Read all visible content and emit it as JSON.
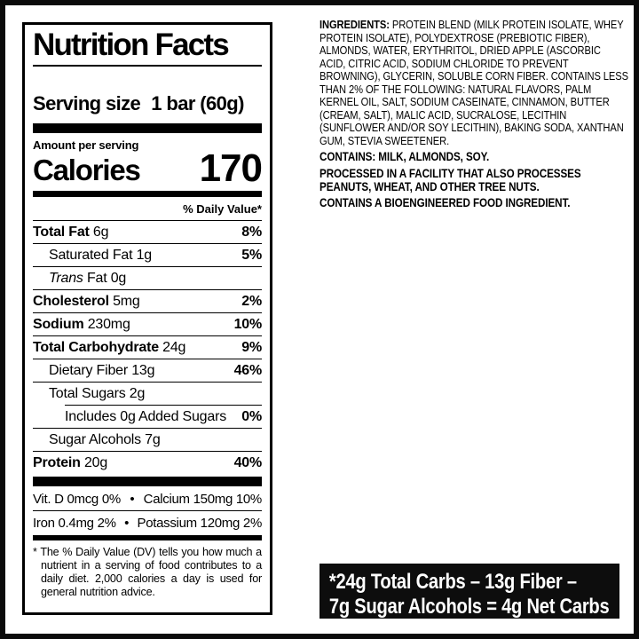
{
  "colors": {
    "ink": "#000000",
    "paper": "#ffffff",
    "callout_bg": "#0d0d0d",
    "callout_fg": "#ffffff"
  },
  "label": {
    "title": "Nutrition Facts",
    "serving": {
      "label": "Serving size",
      "value": "1 bar (60g)"
    },
    "amount_per_serving": "Amount per serving",
    "calories_label": "Calories",
    "calories_value": "170",
    "daily_value_header": "% Daily Value*",
    "rows": [
      {
        "name": "Total Fat",
        "amount": "6g",
        "dv": "8%",
        "style": "bold",
        "indent": 0,
        "divider": "full"
      },
      {
        "name": "Saturated Fat",
        "amount": "1g",
        "dv": "5%",
        "style": "regular",
        "indent": 1,
        "divider": "full"
      },
      {
        "name": "Trans Fat",
        "amount": "0g",
        "dv": "",
        "style": "italic-first",
        "indent": 1,
        "divider": "full"
      },
      {
        "name": "Cholesterol",
        "amount": "5mg",
        "dv": "2%",
        "style": "bold",
        "indent": 0,
        "divider": "full"
      },
      {
        "name": "Sodium",
        "amount": "230mg",
        "dv": "10%",
        "style": "bold",
        "indent": 0,
        "divider": "full"
      },
      {
        "name": "Total Carbohydrate",
        "amount": "24g",
        "dv": "9%",
        "style": "bold",
        "indent": 0,
        "divider": "full"
      },
      {
        "name": "Dietary Fiber",
        "amount": "13g",
        "dv": "46%",
        "style": "regular",
        "indent": 1,
        "divider": "full"
      },
      {
        "name": "Total Sugars",
        "amount": "2g",
        "dv": "",
        "style": "regular",
        "indent": 1,
        "divider": "indent"
      },
      {
        "name": "Includes 0g Added Sugars",
        "amount": "",
        "dv": "0%",
        "style": "regular",
        "indent": 2,
        "divider": "full"
      },
      {
        "name": "Sugar Alcohols",
        "amount": "7g",
        "dv": "",
        "style": "regular",
        "indent": 1,
        "divider": "full"
      },
      {
        "name": "Protein",
        "amount": "20g",
        "dv": "40%",
        "style": "bold",
        "indent": 0,
        "divider": "none"
      }
    ],
    "micros": [
      {
        "left": "Vit. D 0mcg 0%",
        "bullet": "•",
        "right": "Calcium 150mg 10%"
      },
      {
        "left": "Iron 0.4mg 2%",
        "bullet": "•",
        "right": "Potassium 120mg 2%"
      }
    ],
    "footnote": "* The % Daily Value (DV) tells you how much a nutrient in a serving of food contributes to a daily diet. 2,000 calories a day is used for general nutrition advice."
  },
  "ingredients": {
    "prefix": "INGREDIENTS:",
    "body": " PROTEIN BLEND (MILK PROTEIN ISOLATE, WHEY PROTEIN ISOLATE), POLYDEXTROSE (PREBIOTIC FIBER), ALMONDS, WATER, ERYTHRITOL, DRIED APPLE (ASCORBIC ACID, CITRIC ACID, SODIUM CHLORIDE TO PREVENT BROWNING), GLYCERIN, SOLUBLE CORN FIBER. CONTAINS LESS THAN 2% OF THE FOLLOWING: NATURAL FLAVORS, PALM KERNEL OIL, SALT, SODIUM CASEINATE, CINNAMON, BUTTER (CREAM, SALT), MALIC ACID, SUCRALOSE, LECITHIN (SUNFLOWER AND/OR SOY LECITHIN), BAKING SODA, XANTHAN GUM, STEVIA SWEETENER.",
    "allergen": "CONTAINS: MILK, ALMONDS, SOY.",
    "facility": "PROCESSED IN A FACILITY THAT ALSO PROCESSES PEANUTS, WHEAT, AND OTHER TREE NUTS.",
    "bioengineered": "CONTAINS A BIOENGINEERED FOOD INGREDIENT."
  },
  "net_carbs": {
    "line1": "*24g Total Carbs – 13g Fiber –",
    "line2": "7g Sugar Alcohols = 4g Net Carbs"
  }
}
